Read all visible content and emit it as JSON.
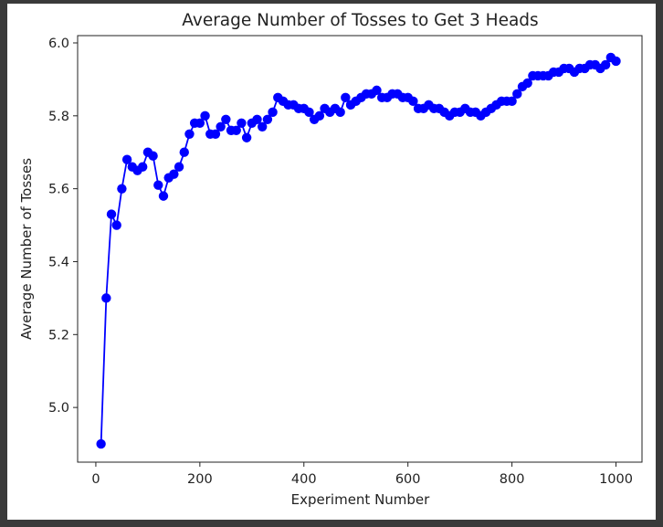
{
  "window": {
    "background": "#3a3a3a",
    "canvas_background": "#ffffff"
  },
  "chart_data": {
    "type": "line",
    "title": "Average Number of Tosses to Get 3 Heads",
    "xlabel": "Experiment Number",
    "ylabel": "Average Number of Tosses",
    "xlim": [
      -35,
      1050
    ],
    "ylim": [
      4.85,
      6.02
    ],
    "xticks": [
      0,
      200,
      400,
      600,
      800,
      1000
    ],
    "yticks": [
      5.0,
      5.2,
      5.4,
      5.6,
      5.8,
      6.0
    ],
    "xtick_labels": [
      "0",
      "200",
      "400",
      "600",
      "800",
      "1000"
    ],
    "ytick_labels": [
      "5.0",
      "5.2",
      "5.4",
      "5.6",
      "5.8",
      "6.0"
    ],
    "grid": false,
    "legend": "none",
    "marker": "circle",
    "color": "#0000ff",
    "series": [
      {
        "x": [
          10,
          20,
          30,
          40,
          50,
          60,
          70,
          80,
          90,
          100,
          110,
          120,
          130,
          140,
          150,
          160,
          170,
          180,
          190,
          200,
          210,
          220,
          230,
          240,
          250,
          260,
          270,
          280,
          290,
          300,
          310,
          320,
          330,
          340,
          350,
          360,
          370,
          380,
          390,
          400,
          410,
          420,
          430,
          440,
          450,
          460,
          470,
          480,
          490,
          500,
          510,
          520,
          530,
          540,
          550,
          560,
          570,
          580,
          590,
          600,
          610,
          620,
          630,
          640,
          650,
          660,
          670,
          680,
          690,
          700,
          710,
          720,
          730,
          740,
          750,
          760,
          770,
          780,
          790,
          800,
          810,
          820,
          830,
          840,
          850,
          860,
          870,
          880,
          890,
          900,
          910,
          920,
          930,
          940,
          950,
          960,
          970,
          980,
          990,
          1000
        ],
        "values": [
          4.9,
          5.3,
          5.53,
          5.5,
          5.6,
          5.68,
          5.66,
          5.65,
          5.66,
          5.7,
          5.69,
          5.61,
          5.58,
          5.63,
          5.64,
          5.66,
          5.7,
          5.75,
          5.78,
          5.78,
          5.8,
          5.75,
          5.75,
          5.77,
          5.79,
          5.76,
          5.76,
          5.78,
          5.74,
          5.78,
          5.79,
          5.77,
          5.79,
          5.81,
          5.85,
          5.84,
          5.83,
          5.83,
          5.82,
          5.82,
          5.81,
          5.79,
          5.8,
          5.82,
          5.81,
          5.82,
          5.81,
          5.85,
          5.83,
          5.84,
          5.85,
          5.86,
          5.86,
          5.87,
          5.85,
          5.85,
          5.86,
          5.86,
          5.85,
          5.85,
          5.84,
          5.82,
          5.82,
          5.83,
          5.82,
          5.82,
          5.81,
          5.8,
          5.81,
          5.81,
          5.82,
          5.81,
          5.81,
          5.8,
          5.81,
          5.82,
          5.83,
          5.84,
          5.84,
          5.84,
          5.86,
          5.88,
          5.89,
          5.91,
          5.91,
          5.91,
          5.91,
          5.92,
          5.92,
          5.93,
          5.93,
          5.92,
          5.93,
          5.93,
          5.94,
          5.94,
          5.93,
          5.94,
          5.96,
          5.95
        ]
      }
    ]
  }
}
